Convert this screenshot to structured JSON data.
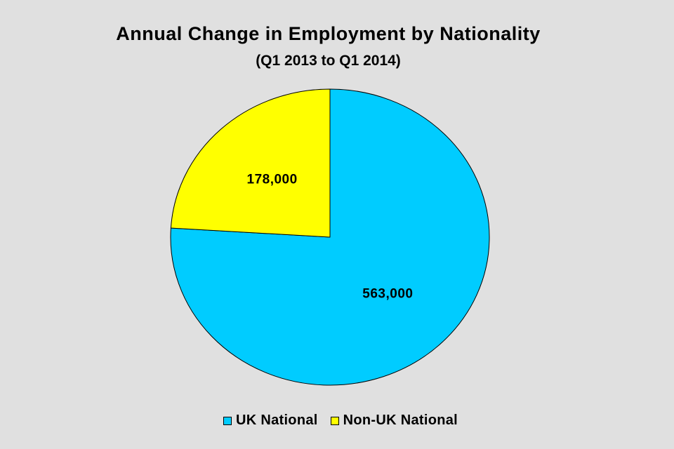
{
  "chart_data": {
    "type": "pie",
    "title": "Annual Change in Employment by Nationality",
    "subtitle": "(Q1 2013 to Q1 2014)",
    "slices": [
      {
        "name": "UK National",
        "value": 563000,
        "label": "563,000",
        "color": "#00ccff"
      },
      {
        "name": "Non-UK National",
        "value": 178000,
        "label": "178,000",
        "color": "#ffff00"
      }
    ],
    "start_angle_deg": 0,
    "direction": "clockwise",
    "legend_position": "bottom"
  }
}
